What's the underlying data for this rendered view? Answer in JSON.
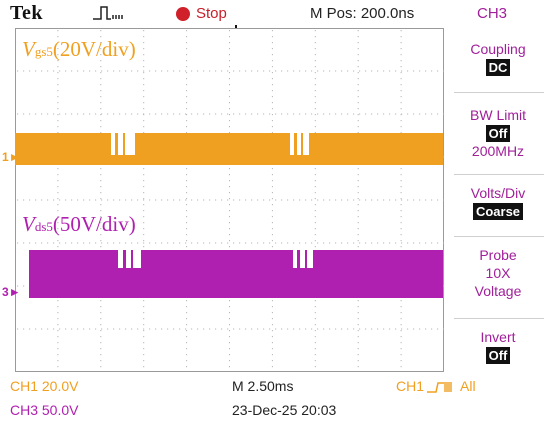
{
  "header": {
    "brand": "Tek",
    "run_state": "Stop",
    "m_pos": "M Pos: 200.0ns",
    "channel": "CH3"
  },
  "waveforms": {
    "ch1_marker": "1",
    "ch3_marker": "3",
    "ch1_color": "#f0a020",
    "ch3_color": "#b020b0",
    "label_gs": {
      "v": "V",
      "sub": "gs5",
      "rest": "(20V/div)"
    },
    "label_ds": {
      "v": "V",
      "sub": "ds5",
      "rest": "(50V/div)"
    }
  },
  "menu": {
    "coupling_label": "Coupling",
    "coupling_value": "DC",
    "bw_label": "BW Limit",
    "bw_value": "Off",
    "bw_freq": "200MHz",
    "volts_label": "Volts/Div",
    "volts_value": "Coarse",
    "probe_label": "Probe",
    "probe_value": "10X",
    "probe_type": "Voltage",
    "invert_label": "Invert",
    "invert_value": "Off"
  },
  "footer": {
    "ch1_scale": "CH1  20.0V",
    "ch3_scale": "CH3  50.0V",
    "timebase": "M 2.50ms",
    "date": "23-Dec-25 20:03",
    "trigger_source": "CH1",
    "trigger_mode": "All"
  }
}
